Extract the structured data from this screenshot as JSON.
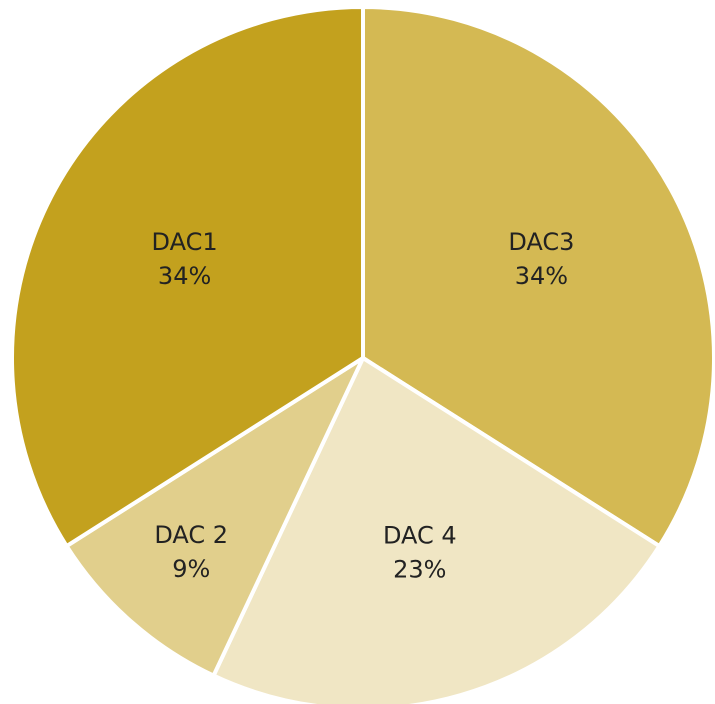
{
  "chart_data": {
    "type": "pie",
    "categories": [
      "DAC3",
      "DAC 4",
      "DAC 2",
      "DAC1"
    ],
    "values": [
      34,
      23,
      9,
      34
    ],
    "value_labels": [
      "34%",
      "23%",
      "9%",
      "34%"
    ],
    "colors": [
      "#d4b953",
      "#f0e6c4",
      "#e1cf8c",
      "#c3a11e"
    ]
  }
}
